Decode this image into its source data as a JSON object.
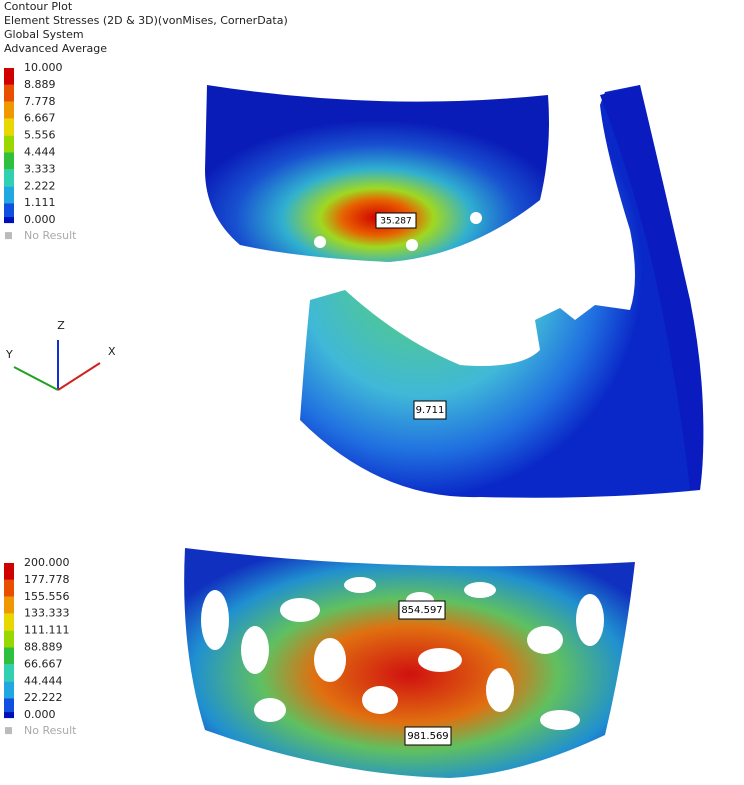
{
  "header": {
    "lines": [
      "Contour Plot",
      "Element Stresses (2D & 3D)(vonMises, CornerData)",
      "Global System",
      "Advanced Average"
    ]
  },
  "legend_top": {
    "labels": [
      "10.000",
      "8.889",
      "7.778",
      "6.667",
      "5.556",
      "4.444",
      "3.333",
      "2.222",
      "1.111",
      "0.000"
    ],
    "no_result": "No Result"
  },
  "legend_bottom": {
    "labels": [
      "200.000",
      "177.778",
      "155.556",
      "133.333",
      "111.111",
      "88.889",
      "66.667",
      "44.444",
      "22.222",
      "0.000"
    ],
    "no_result": "No Result"
  },
  "triad": {
    "z": "Z",
    "y": "Y",
    "x": "X"
  },
  "annotations": [
    "35.287",
    "9.711",
    "854.597",
    "981.569"
  ]
}
